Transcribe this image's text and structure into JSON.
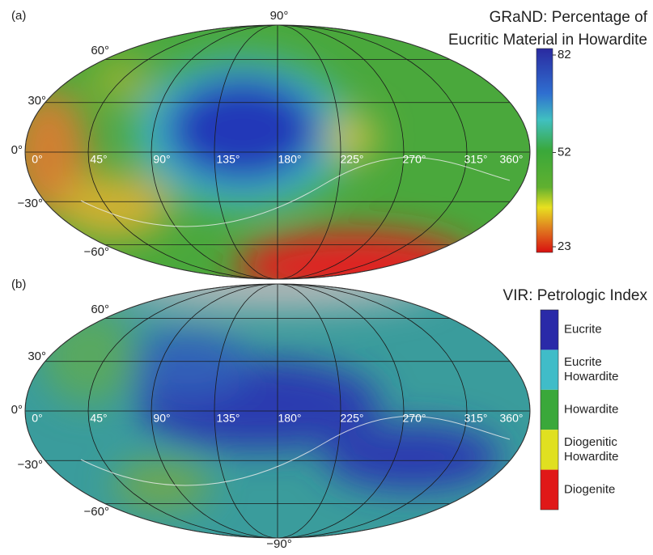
{
  "figure": {
    "panels": [
      {
        "label": "(a)",
        "title": [
          "GRaND:  Percentage of",
          "Eucritic Material in Howardite"
        ],
        "latitude_labels": [
          "90°",
          "60°",
          "30°",
          "0°",
          "−30°",
          "−60°"
        ],
        "longitude_labels": [
          "0°",
          "45°",
          "90°",
          "135°",
          "180°",
          "225°",
          "270°",
          "315°",
          "360°"
        ],
        "colorbar": {
          "ticks": [
            82,
            52,
            23
          ]
        }
      },
      {
        "label": "(b)",
        "title": [
          "VIR:  Petrologic Index"
        ],
        "latitude_labels": [
          "60°",
          "30°",
          "0°",
          "−30°",
          "−60°",
          "−90°"
        ],
        "longitude_labels": [
          "0°",
          "45°",
          "90°",
          "135°",
          "180°",
          "225°",
          "270°",
          "315°",
          "360°"
        ],
        "legend": [
          [
            "Eucrite"
          ],
          [
            "Eucrite",
            "Howardite"
          ],
          [
            "Howardite"
          ],
          [
            "Diogenitic",
            "Howardite"
          ],
          [
            "Diogenite"
          ]
        ]
      }
    ]
  }
}
